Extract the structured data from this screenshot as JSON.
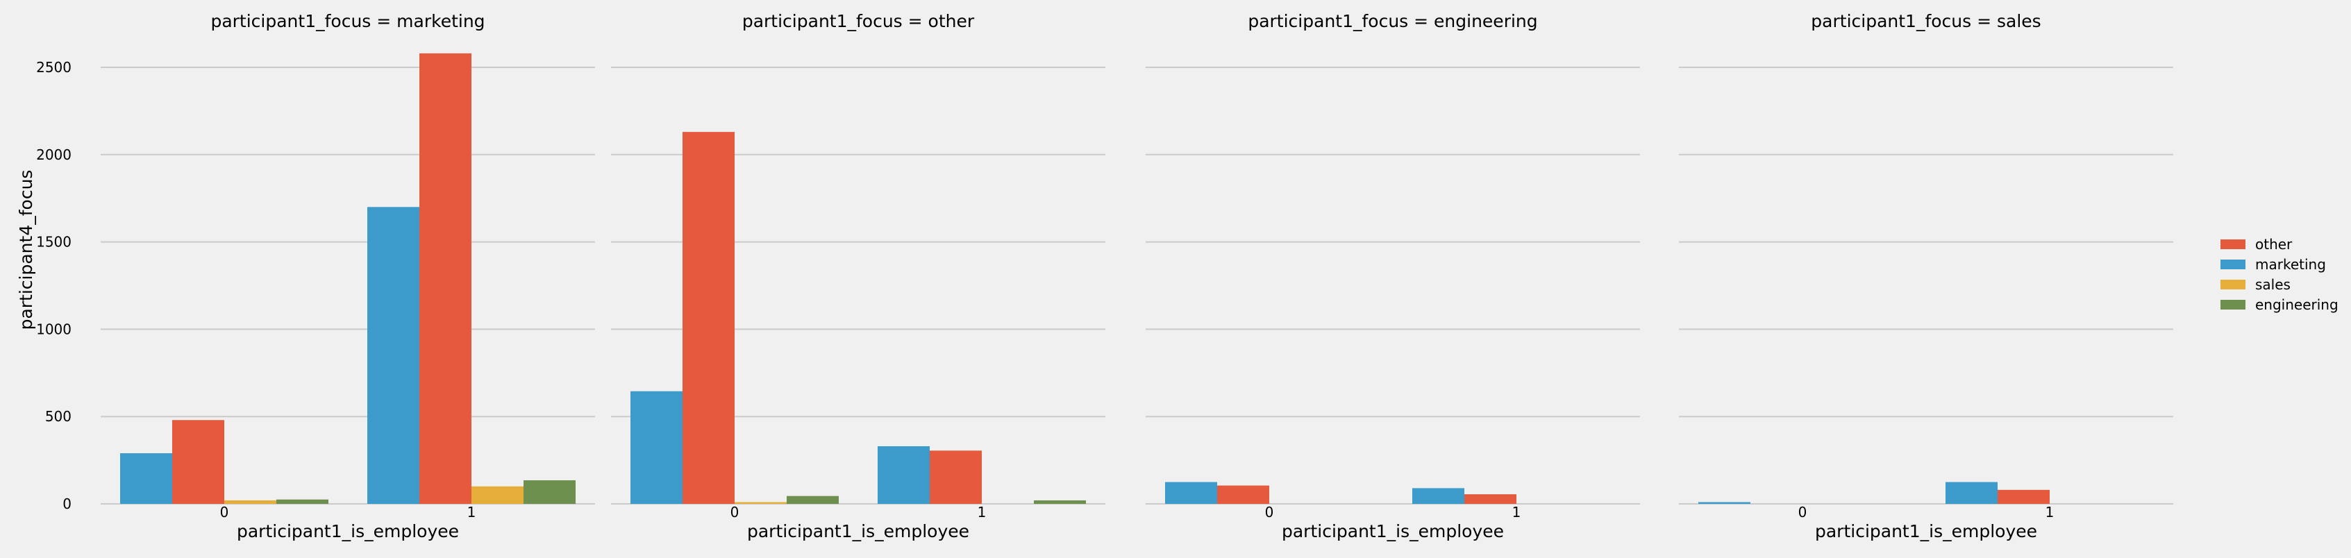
{
  "colors": {
    "background": "#f0f0f0",
    "grid": "#cbcbcb",
    "other": "#e5593d",
    "marketing": "#3c9bcb",
    "sales": "#e5ae38",
    "engineering": "#6d904f"
  },
  "chart_data": {
    "type": "bar",
    "ylabel": "participant4_focus",
    "ylim": [
      0,
      2600
    ],
    "yticks": [
      "0",
      "500",
      "1000",
      "1500",
      "2000",
      "2500"
    ],
    "grid": true,
    "legend_placement": "right",
    "legend": [
      {
        "name": "other",
        "color": "#e5593d"
      },
      {
        "name": "marketing",
        "color": "#3c9bcb"
      },
      {
        "name": "sales",
        "color": "#e5ae38"
      },
      {
        "name": "engineering",
        "color": "#6d904f"
      }
    ],
    "panels": [
      {
        "title": "participant1_focus = marketing",
        "xlabel": "participant1_is_employee",
        "categories": [
          "0",
          "1"
        ],
        "series": [
          {
            "name": "marketing",
            "values": [
              290,
              1700
            ]
          },
          {
            "name": "other",
            "values": [
              480,
              2580
            ]
          },
          {
            "name": "sales",
            "values": [
              20,
              100
            ]
          },
          {
            "name": "engineering",
            "values": [
              25,
              135
            ]
          }
        ]
      },
      {
        "title": "participant1_focus = other",
        "xlabel": "participant1_is_employee",
        "categories": [
          "0",
          "1"
        ],
        "series": [
          {
            "name": "marketing",
            "values": [
              645,
              330
            ]
          },
          {
            "name": "other",
            "values": [
              2130,
              305
            ]
          },
          {
            "name": "sales",
            "values": [
              10,
              0
            ]
          },
          {
            "name": "engineering",
            "values": [
              45,
              20
            ]
          }
        ]
      },
      {
        "title": "participant1_focus = engineering",
        "xlabel": "participant1_is_employee",
        "categories": [
          "0",
          "1"
        ],
        "series": [
          {
            "name": "marketing",
            "values": [
              125,
              90
            ]
          },
          {
            "name": "other",
            "values": [
              105,
              55
            ]
          },
          {
            "name": "sales",
            "values": [
              0,
              0
            ]
          },
          {
            "name": "engineering",
            "values": [
              0,
              0
            ]
          }
        ]
      },
      {
        "title": "participant1_focus = sales",
        "xlabel": "participant1_is_employee",
        "categories": [
          "0",
          "1"
        ],
        "series": [
          {
            "name": "marketing",
            "values": [
              10,
              125
            ]
          },
          {
            "name": "other",
            "values": [
              0,
              80
            ]
          },
          {
            "name": "sales",
            "values": [
              0,
              0
            ]
          },
          {
            "name": "engineering",
            "values": [
              0,
              0
            ]
          }
        ]
      }
    ]
  }
}
